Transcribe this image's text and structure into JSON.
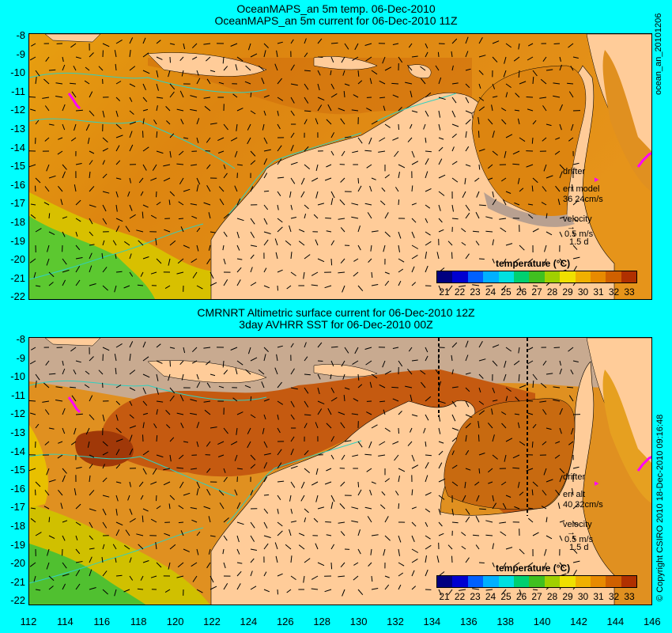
{
  "top_panel": {
    "title_line1": "OceanMAPS_an 5m temp. 06-Dec-2010",
    "title_line2": "OceanMAPS_an 5m current for 06-Dec-2010 11Z",
    "side_label": "ocean_an_20101206",
    "legend": {
      "drifter": "drifter",
      "err_label": "err model",
      "err_value": "36 24cm/s",
      "velocity": "velocity",
      "speed": "0.5 m/s",
      "time": "1.5 d"
    }
  },
  "bottom_panel": {
    "title_line1": "CMRNRT Altimetric surface current for 06-Dec-2010 12Z",
    "title_line2": "3day AVHRR SST for 06-Dec-2010 00Z",
    "side_label": "© Copyright CSIRO 2010   18-Dec-2010 09:16:48",
    "legend": {
      "drifter": "drifter",
      "err_label": "err alt",
      "err_value": "40 32cm/s",
      "velocity": "velocity",
      "speed": "0.5 m/s",
      "time": "1.5 d"
    }
  },
  "colorbar": {
    "title": "temperature (°C)",
    "labels": [
      "21",
      "22",
      "23",
      "24",
      "25",
      "26",
      "27",
      "28",
      "29",
      "30",
      "31",
      "32",
      "33"
    ]
  },
  "axes": {
    "lat_ticks": [
      "-8",
      "-9",
      "-10",
      "-11",
      "-12",
      "-13",
      "-14",
      "-15",
      "-16",
      "-17",
      "-18",
      "-19",
      "-20",
      "-21",
      "-22"
    ],
    "lon_ticks": [
      "112",
      "114",
      "116",
      "118",
      "120",
      "122",
      "124",
      "126",
      "128",
      "130",
      "132",
      "134",
      "136",
      "138",
      "140",
      "142",
      "144",
      "146"
    ]
  },
  "colors": {
    "background": "#00ffff",
    "land": "#ffcc99",
    "ocean_warm": "#e08a10",
    "ocean_hot": "#c85a0a",
    "ocean_cool": "#e8c400",
    "coast_cool": "#40d030",
    "no_data": "#c8aa90",
    "drifter": "#ff00ff",
    "contour": "#30d0c0"
  }
}
